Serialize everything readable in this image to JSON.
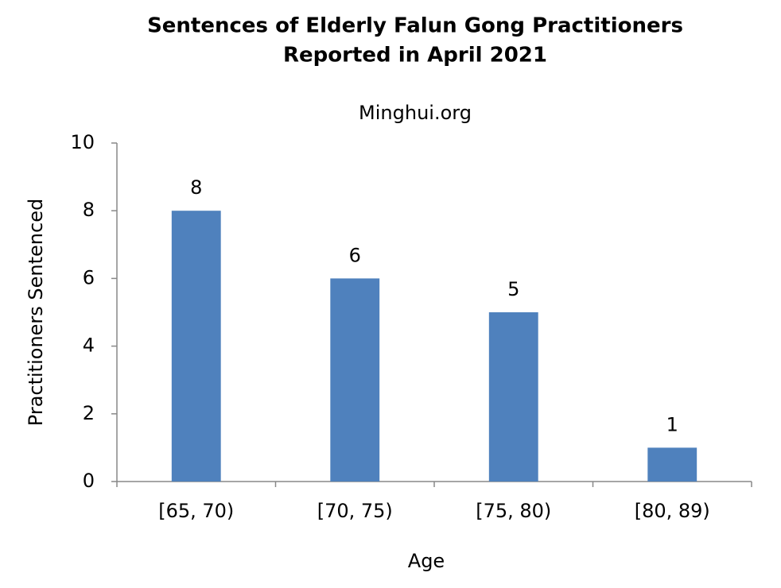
{
  "chart_data": {
    "type": "bar",
    "title": [
      "Sentences of Elderly Falun Gong Practitioners",
      "Reported in April 2021"
    ],
    "subtitle": "Minghui.org",
    "x_label": "Age",
    "y_label": "Practitioners Sentenced",
    "categories": [
      "[65, 70)",
      "[70, 75)",
      "[75, 80)",
      "[80, 89)"
    ],
    "values": [
      8,
      6,
      5,
      1
    ],
    "color": "#4f81bd",
    "ylim": [
      0,
      10
    ],
    "yticks": [
      0,
      2,
      4,
      6,
      8,
      10
    ],
    "grid": false
  }
}
